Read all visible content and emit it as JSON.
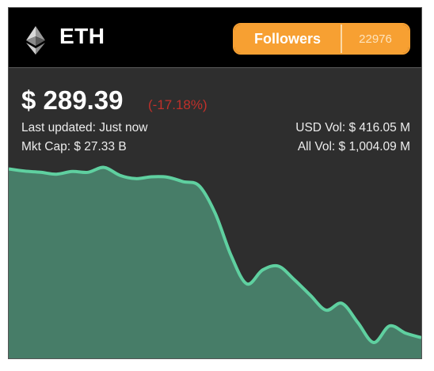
{
  "coin": {
    "symbol": "ETH",
    "price": "$ 289.39",
    "change": "(-17.18%)",
    "last_updated": "Last updated: Just now",
    "mkt_cap": "Mkt Cap: $ 27.33 B",
    "usd_vol": "USD Vol: $ 416.05 M",
    "all_vol": "All Vol: $ 1,004.09 M"
  },
  "followers": {
    "label": "Followers",
    "count": "22976"
  },
  "colors": {
    "accent": "#f7a032",
    "negative": "#c0302a",
    "chart_line": "#5fd0a0",
    "chart_fill": "#477d68",
    "background": "#2e2e2e"
  },
  "icons": {
    "logo": "ethereum-icon"
  },
  "chart_data": {
    "type": "area",
    "values": [
      100,
      99.4,
      99.1,
      98.6,
      99.3,
      99.1,
      100.4,
      98.3,
      97.4,
      97.9,
      97.8,
      96.6,
      95.5,
      88.3,
      77.1,
      69.4,
      73.1,
      74.1,
      70.5,
      66.4,
      62.4,
      64.2,
      59.1,
      53.8,
      58.2,
      56.3,
      55.1
    ],
    "ylim": [
      50,
      102
    ]
  }
}
